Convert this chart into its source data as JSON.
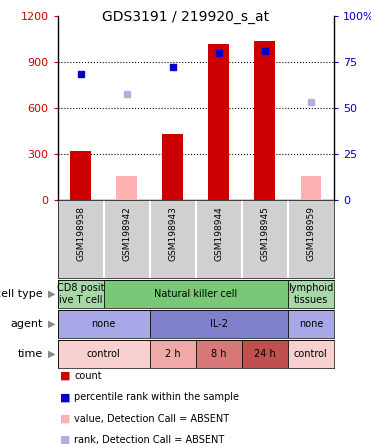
{
  "title": "GDS3191 / 219920_s_at",
  "samples": [
    "GSM198958",
    "GSM198942",
    "GSM198943",
    "GSM198944",
    "GSM198945",
    "GSM198959"
  ],
  "count_values": [
    320,
    null,
    430,
    1020,
    1040,
    null
  ],
  "count_absent_values": [
    null,
    155,
    null,
    null,
    null,
    155
  ],
  "percentile_values": [
    820,
    null,
    870,
    960,
    970,
    null
  ],
  "percentile_absent_values": [
    null,
    690,
    null,
    null,
    null,
    640
  ],
  "ylim_left": [
    0,
    1200
  ],
  "ylim_right": [
    0,
    100
  ],
  "yticks_left": [
    0,
    300,
    600,
    900,
    1200
  ],
  "yticks_right": [
    0,
    25,
    50,
    75,
    100
  ],
  "yticklabels_left": [
    "0",
    "300",
    "600",
    "900",
    "1200"
  ],
  "yticklabels_right": [
    "0",
    "25",
    "50",
    "75",
    "100%"
  ],
  "cell_type_labels": [
    {
      "label": "CD8 posit\nive T cell",
      "span": [
        0,
        1
      ],
      "color": "#a8d8a8"
    },
    {
      "label": "Natural killer cell",
      "span": [
        1,
        5
      ],
      "color": "#78c878"
    },
    {
      "label": "lymphoid\ntissues",
      "span": [
        5,
        6
      ],
      "color": "#a8d8a8"
    }
  ],
  "agent_labels": [
    {
      "label": "none",
      "span": [
        0,
        2
      ],
      "color": "#a8a8e8"
    },
    {
      "label": "IL-2",
      "span": [
        2,
        5
      ],
      "color": "#8080cc"
    },
    {
      "label": "none",
      "span": [
        5,
        6
      ],
      "color": "#a8a8e8"
    }
  ],
  "time_labels": [
    {
      "label": "control",
      "span": [
        0,
        2
      ],
      "color": "#f8d0d0"
    },
    {
      "label": "2 h",
      "span": [
        2,
        3
      ],
      "color": "#f0a8a8"
    },
    {
      "label": "8 h",
      "span": [
        3,
        4
      ],
      "color": "#d87878"
    },
    {
      "label": "24 h",
      "span": [
        4,
        5
      ],
      "color": "#c05050"
    },
    {
      "label": "control",
      "span": [
        5,
        6
      ],
      "color": "#f8d0d0"
    }
  ],
  "bar_color": "#cc0000",
  "absent_bar_color": "#ffb0b0",
  "percentile_color": "#0000cc",
  "percentile_absent_color": "#b0b0dd",
  "legend_items": [
    {
      "color": "#cc0000",
      "label": "count"
    },
    {
      "color": "#0000cc",
      "label": "percentile rank within the sample"
    },
    {
      "color": "#ffb0b0",
      "label": "value, Detection Call = ABSENT"
    },
    {
      "color": "#b0b0dd",
      "label": "rank, Detection Call = ABSENT"
    }
  ],
  "left_tick_color": "#cc0000",
  "right_tick_color": "#0000cc"
}
